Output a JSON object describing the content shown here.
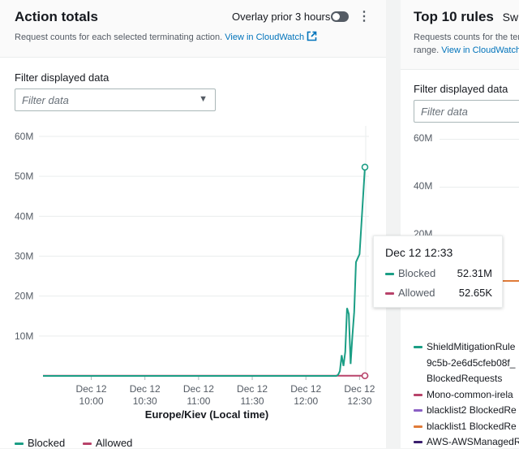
{
  "left_panel": {
    "title": "Action totals",
    "overlay_label": "Overlay prior 3 hours",
    "overlay_on": false,
    "menu_icon": "vertical-dots-icon",
    "description": "Request counts for each selected terminating action.",
    "cloudwatch_link": "View in CloudWatch",
    "filter_label": "Filter displayed data",
    "filter_placeholder": "Filter data",
    "legend": [
      {
        "label": "Blocked",
        "color": "#1b9e85"
      },
      {
        "label": "Allowed",
        "color": "#b8436a"
      }
    ],
    "tooltip": {
      "time": "Dec 12 12:33",
      "rows": [
        {
          "label": "Blocked",
          "value": "52.31M"
        },
        {
          "label": "Allowed",
          "value": "52.65K"
        }
      ]
    }
  },
  "right_panel": {
    "title": "Top 10 rules",
    "title_suffix": "Swi",
    "description_1": "Requests counts for the ter",
    "description_2": "range.",
    "cloudwatch_link": "View in CloudWatch",
    "filter_label": "Filter displayed data",
    "filter_placeholder": "Filter data",
    "y_ticks": [
      "60M",
      "40M",
      "20M"
    ],
    "legend": [
      {
        "label": "ShieldMitigationRule",
        "color": "#1b9e85"
      },
      {
        "label": "9c5b-2e6d5cfeb08f_",
        "color": ""
      },
      {
        "label": "BlockedRequests",
        "color": ""
      },
      {
        "label": "Mono-common-irela",
        "color": "#b8436a"
      },
      {
        "label": "blacklist2 BlockedRe",
        "color": "#8a5fc4"
      },
      {
        "label": "blacklist1 BlockedRe",
        "color": "#e07b39"
      },
      {
        "label": "AWS-AWSManagedR",
        "color": "#3b1f6e"
      }
    ]
  },
  "chart_data": {
    "type": "line",
    "xlabel": "Europe/Kiev (Local time)",
    "ylabel": "",
    "ylim": [
      0,
      60000000
    ],
    "y_ticks": [
      "60M",
      "50M",
      "40M",
      "30M",
      "20M",
      "10M"
    ],
    "x_ticks": [
      [
        "Dec 12",
        "10:00"
      ],
      [
        "Dec 12",
        "10:30"
      ],
      [
        "Dec 12",
        "11:00"
      ],
      [
        "Dec 12",
        "11:30"
      ],
      [
        "Dec 12",
        "12:00"
      ],
      [
        "Dec 12",
        "12:30"
      ]
    ],
    "x_range": [
      "09:33",
      "12:33"
    ],
    "grid": true,
    "legend_position": "bottom-left",
    "series": [
      {
        "name": "Blocked",
        "color": "#1b9e85",
        "points": [
          [
            "09:33",
            0
          ],
          [
            "12:17",
            0
          ],
          [
            "12:18",
            300000
          ],
          [
            "12:19",
            1200000
          ],
          [
            "12:20",
            5200000
          ],
          [
            "12:21",
            2500000
          ],
          [
            "12:22",
            6000000
          ],
          [
            "12:23",
            17000000
          ],
          [
            "12:24",
            15500000
          ],
          [
            "12:25",
            3000000
          ],
          [
            "12:26",
            10000000
          ],
          [
            "12:27",
            16000000
          ],
          [
            "12:28",
            28500000
          ],
          [
            "12:29",
            29500000
          ],
          [
            "12:30",
            30500000
          ],
          [
            "12:33",
            52310000
          ]
        ]
      },
      {
        "name": "Allowed",
        "color": "#b8436a",
        "points": [
          [
            "09:33",
            50000
          ],
          [
            "12:33",
            52650
          ]
        ]
      }
    ]
  }
}
